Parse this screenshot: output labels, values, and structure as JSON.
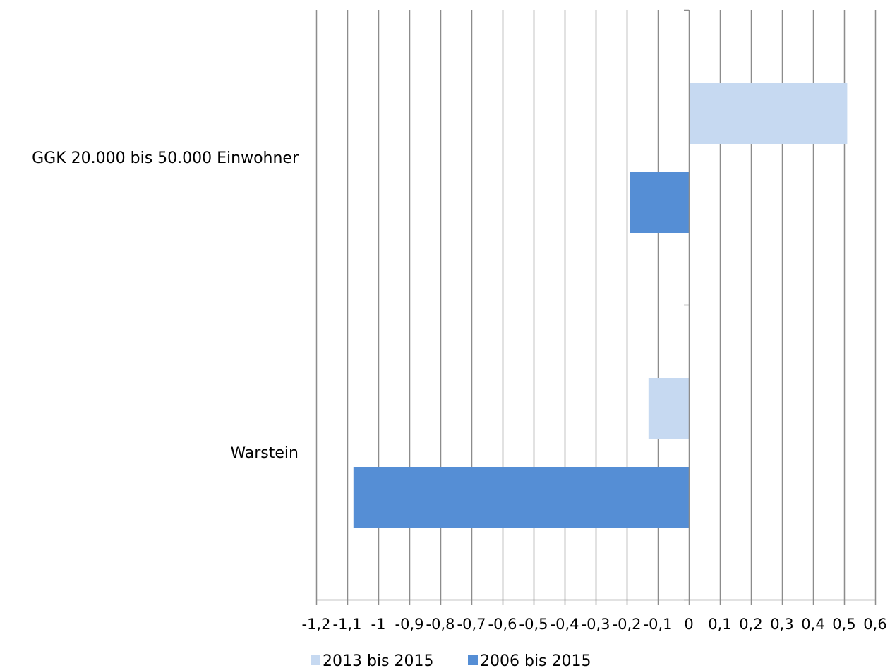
{
  "chart_data": {
    "type": "bar",
    "orientation": "horizontal",
    "categories": [
      "GGK 20.000 bis 50.000 Einwohner",
      "Warstein"
    ],
    "series": [
      {
        "name": "2013 bis 2015",
        "color": "#c6d9f1",
        "values": [
          0.51,
          -0.13
        ]
      },
      {
        "name": "2006 bis 2015",
        "color": "#558ed5",
        "values": [
          -0.19,
          -1.08
        ]
      }
    ],
    "xlim": [
      -1.2,
      0.6
    ],
    "xticks": [
      -1.2,
      -1.1,
      -1,
      -0.9,
      -0.8,
      -0.7,
      -0.6,
      -0.5,
      -0.4,
      -0.3,
      -0.2,
      -0.1,
      0,
      0.1,
      0.2,
      0.3,
      0.4,
      0.5,
      0.6
    ],
    "xtick_labels": [
      "-1,2",
      "-1,1",
      "-1",
      "-0,9",
      "-0,8",
      "-0,7",
      "-0,6",
      "-0,5",
      "-0,4",
      "-0,3",
      "-0,2",
      "-0,1",
      "0",
      "0,1",
      "0,2",
      "0,3",
      "0,4",
      "0,5",
      "0,6"
    ],
    "grid": true,
    "legend_position": "bottom",
    "title": "",
    "xlabel": "",
    "ylabel": ""
  }
}
